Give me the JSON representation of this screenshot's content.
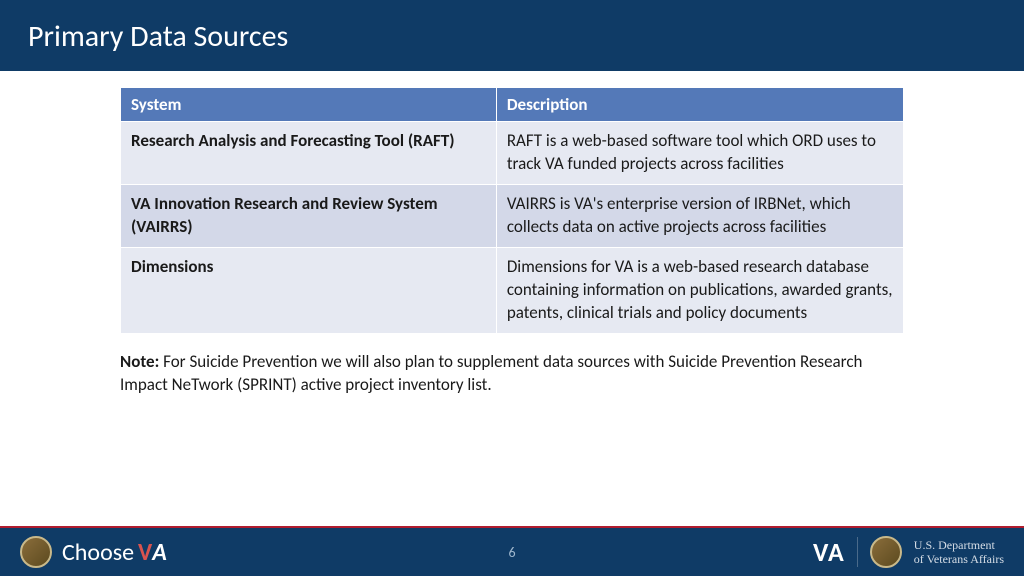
{
  "header": {
    "title": "Primary Data Sources"
  },
  "table": {
    "columns": [
      "System",
      "Description"
    ],
    "col_widths": [
      "48%",
      "52%"
    ],
    "header_bg": "#5479b8",
    "header_color": "#ffffff",
    "row_bg_odd": "#e6e9f2",
    "row_bg_even": "#d3d8e8",
    "font_size": 17,
    "rows": [
      {
        "system": "Research Analysis and Forecasting Tool (RAFT)",
        "description": "RAFT is a web-based software tool which ORD uses to track VA funded projects across facilities"
      },
      {
        "system": "VA Innovation Research and Review System (VAIRRS)",
        "description": "VAIRRS is VA's enterprise version of IRBNet, which collects data on active projects across facilities"
      },
      {
        "system": "Dimensions",
        "description": "Dimensions for VA is a web-based research database containing information on publications, awarded grants, patents, clinical trials and policy documents"
      }
    ]
  },
  "note": {
    "label": "Note:",
    "text": " For Suicide Prevention we will also plan to supplement data sources with Suicide Prevention Research Impact NeTwork (SPRINT) active project inventory list."
  },
  "footer": {
    "page_number": "6",
    "choose_text": "Choose",
    "choose_v": "V",
    "choose_a": "A",
    "va_text": "VA",
    "dept_line1": "U.S. Department",
    "dept_line2": "of Veterans Affairs"
  },
  "colors": {
    "header_bg": "#0f3b66",
    "accent_red": "#b01c2e",
    "background": "#ffffff"
  }
}
